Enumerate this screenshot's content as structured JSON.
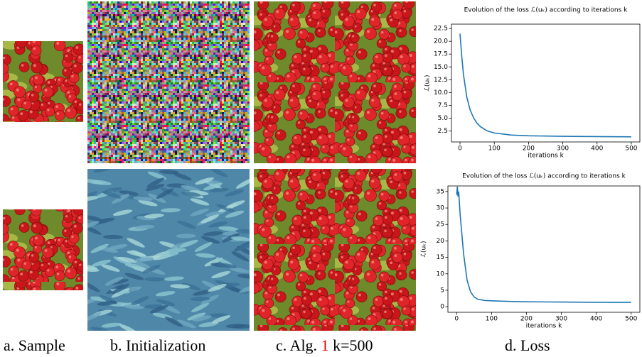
{
  "captions": {
    "a": "a. Sample",
    "b": "b. Initialization",
    "c_pre": "c. Alg.",
    "c_ref": "1",
    "c_post": "k=500",
    "d": "d. Loss"
  },
  "chart_data": [
    {
      "type": "line",
      "title": "Evolution of the loss ℒ(uₖ) according to iterations k",
      "x_label": "iterations k",
      "y_label": "ℒ(uₖ)",
      "x": [
        0,
        5,
        10,
        20,
        30,
        40,
        50,
        60,
        80,
        100,
        150,
        200,
        300,
        400,
        500
      ],
      "values": [
        21.5,
        17,
        13.5,
        9.0,
        6.5,
        5.0,
        4.0,
        3.3,
        2.5,
        2.1,
        1.7,
        1.55,
        1.45,
        1.4,
        1.35
      ],
      "color": "#1f77b4",
      "xlim": [
        -25,
        525
      ],
      "xticks": [
        0,
        100,
        200,
        300,
        400,
        500
      ],
      "ylim": [
        0.35,
        23.35
      ],
      "yticks": [
        2.5,
        {
          "value": 5,
          "label": "5.0"
        },
        7.5,
        {
          "value": 10,
          "label": "10.0"
        },
        12.5,
        {
          "value": 15,
          "label": "15.0"
        },
        17.5,
        {
          "value": 20,
          "label": "20.0"
        },
        22.5
      ]
    },
    {
      "type": "line",
      "title": "Evolution of the loss ℒ(uₖ) according to iterations k",
      "x_label": "iterations k",
      "y_label": "ℒ(uₖ)",
      "x": [
        0,
        2,
        4,
        6,
        10,
        20,
        30,
        40,
        50,
        60,
        80,
        100,
        150,
        200,
        300,
        400,
        500
      ],
      "values": [
        34,
        36.5,
        33.5,
        35,
        28,
        16,
        8,
        4.5,
        3,
        2.3,
        1.9,
        1.8,
        1.6,
        1.5,
        1.4,
        1.35,
        1.3
      ],
      "color": "#1f77b4",
      "xlim": [
        -25,
        525
      ],
      "xticks": [
        0,
        100,
        200,
        300,
        400,
        500
      ],
      "ylim": [
        -1.7,
        36.7
      ],
      "yticks": [
        0,
        5,
        10,
        15,
        20,
        25,
        30,
        35
      ]
    }
  ]
}
